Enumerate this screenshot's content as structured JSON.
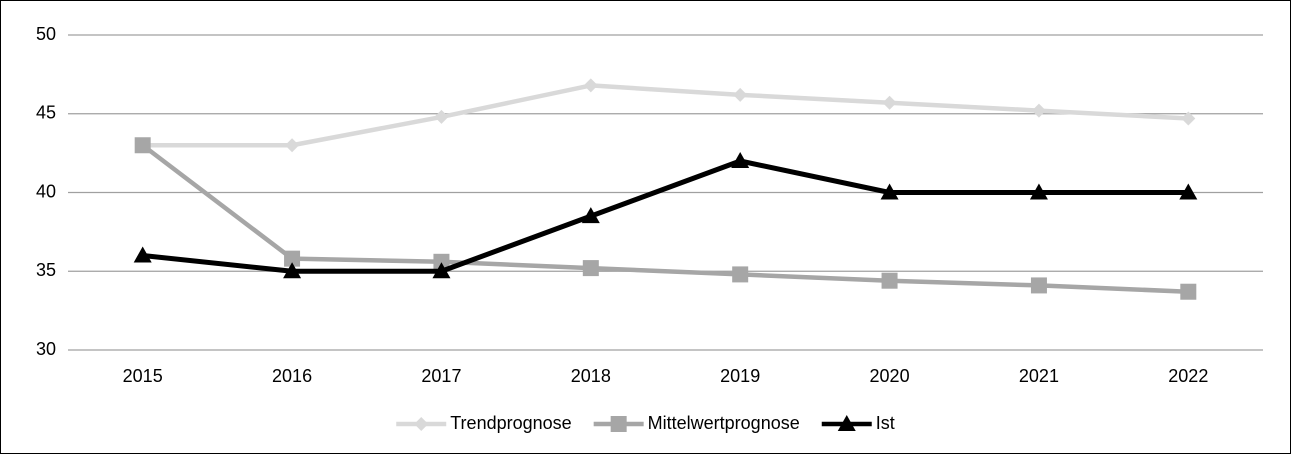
{
  "chart_data": {
    "type": "line",
    "categories": [
      "2015",
      "2016",
      "2017",
      "2018",
      "2019",
      "2020",
      "2021",
      "2022"
    ],
    "series": [
      {
        "name": "Trendprognose",
        "color": "#d9d9d9",
        "marker": "diamond",
        "values": [
          43,
          43,
          44.8,
          46.8,
          46.2,
          45.7,
          45.2,
          44.7
        ]
      },
      {
        "name": "Mittelwertprognose",
        "color": "#a6a6a6",
        "marker": "square",
        "values": [
          43,
          35.8,
          35.6,
          35.2,
          34.8,
          34.4,
          34.1,
          33.7
        ]
      },
      {
        "name": "Ist",
        "color": "#000000",
        "marker": "triangle",
        "values": [
          36,
          35,
          35,
          38.5,
          42,
          40,
          40,
          40
        ]
      }
    ],
    "ylim": [
      30,
      50
    ],
    "yticks": [
      30,
      35,
      40,
      45,
      50
    ],
    "grid": true,
    "legend": "bottom"
  }
}
